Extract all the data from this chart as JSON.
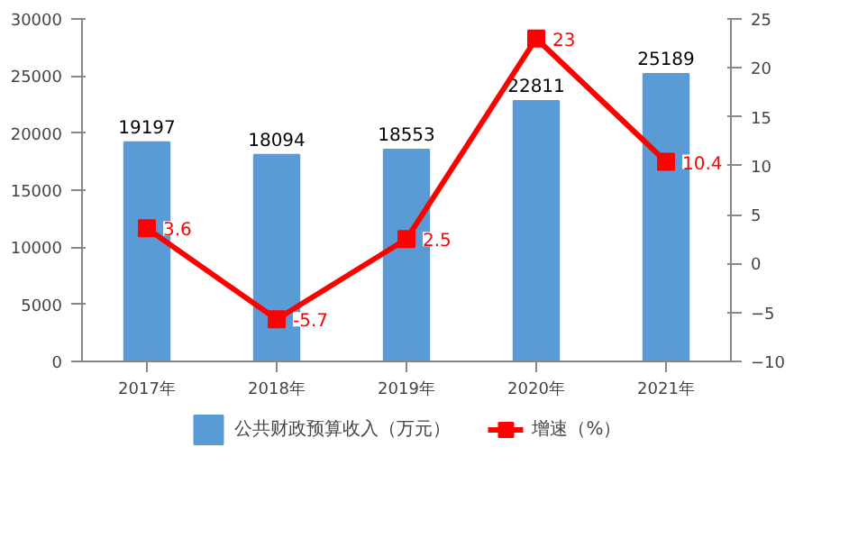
{
  "chart_data": {
    "type": "bar",
    "categories": [
      "2017年",
      "2018年",
      "2019年",
      "2020年",
      "2021年"
    ],
    "series": [
      {
        "name": "公共财政预算收入（万元）",
        "color": "#5b9bd5",
        "values": [
          19197,
          18094,
          18553,
          22811,
          25189
        ]
      },
      {
        "name": "增速（%）",
        "type": "line",
        "axis": "y2",
        "color": "#ff0000",
        "marker": "square",
        "values": [
          3.6,
          -5.7,
          2.5,
          23,
          10.4
        ]
      }
    ],
    "ylim": [
      0,
      30000
    ],
    "yticks": [
      0,
      5000,
      10000,
      15000,
      20000,
      25000,
      30000
    ],
    "y2lim": [
      -10,
      25
    ],
    "y2ticks": [
      -10,
      -5,
      0,
      5,
      10,
      15,
      20,
      25
    ],
    "grid": false,
    "legend": "bottom",
    "data_labels": true
  }
}
